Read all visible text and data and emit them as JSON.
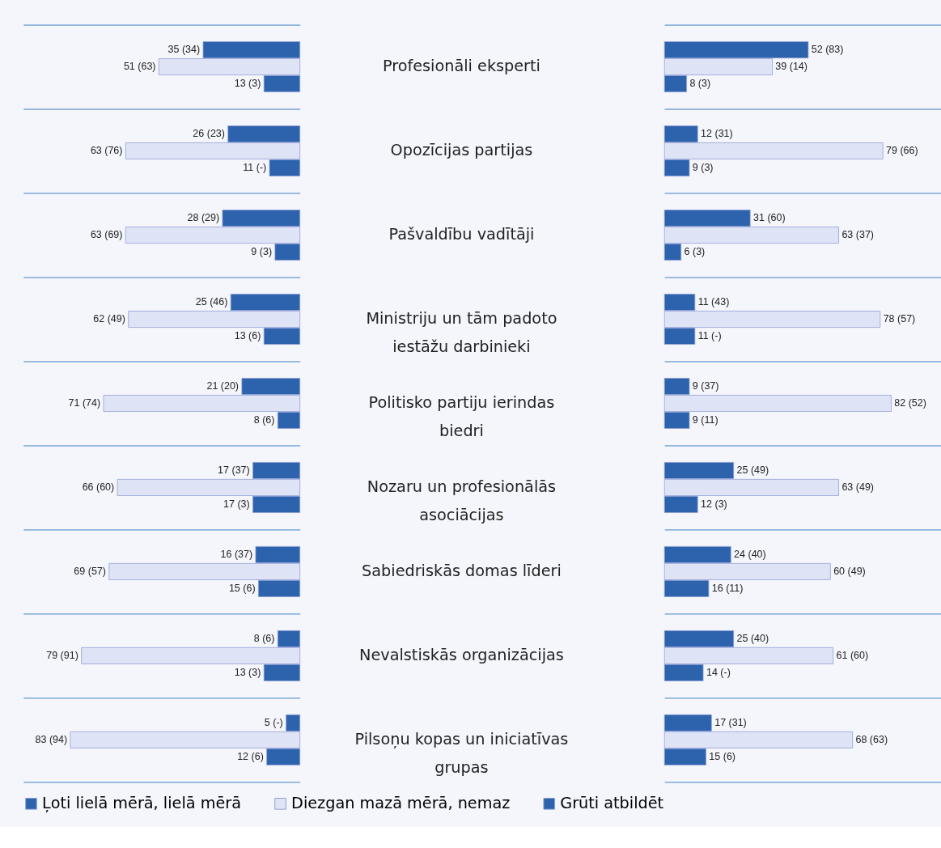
{
  "chart_data": [
    {
      "type": "bar",
      "orientation": "horizontal",
      "xlim": [
        100,
        0
      ],
      "tick_labels": "y",
      "grid": true,
      "legend": "bottom",
      "categories": [
        "Profesionāli eksperti",
        "Opozīcijas partijas",
        "Pašvaldību vadītāji",
        "Ministriju un tām padoto iestāžu darbinieki",
        "Politisko partiju ierindas biedri",
        "Nozaru un profesionālās asociācijas",
        "Sabiedriskās domas līderi",
        "Nevalstiskās organizācijas",
        "Pilsoņu kopas un iniciatīvas grupas"
      ],
      "series": [
        {
          "name": "Ļoti lielā mērā, lielā mērā",
          "color": "#2d62ad",
          "values": [
            35,
            26,
            28,
            25,
            21,
            17,
            16,
            8,
            5
          ],
          "value_labels": [
            "35 (34)",
            "26 (23)",
            "28 (29)",
            "25 (46)",
            "21 (20)",
            "17 (37)",
            "16 (37)",
            "8 (6)",
            "5 (-)"
          ]
        },
        {
          "name": "Diezgan mazā mērā, nemaz",
          "color": "#dfe3f6",
          "values": [
            51,
            63,
            63,
            62,
            71,
            66,
            69,
            79,
            83
          ],
          "value_labels": [
            "51 (63)",
            "63 (76)",
            "63 (69)",
            "62 (49)",
            "71 (74)",
            "66 (60)",
            "69 (57)",
            "79 (91)",
            "83 (94)"
          ]
        },
        {
          "name": "Grūti atbildēt",
          "color": "#2d62ad",
          "values": [
            13,
            11,
            9,
            13,
            8,
            17,
            15,
            13,
            12
          ],
          "value_labels": [
            "13 (3)",
            "11 (-)",
            "9 (3)",
            "13 (6)",
            "8 (6)",
            "17 (3)",
            "15 (6)",
            "13 (3)",
            "12 (6)"
          ]
        }
      ]
    },
    {
      "type": "bar",
      "orientation": "horizontal",
      "xlim": [
        0,
        100
      ],
      "tick_labels": false,
      "grid": true,
      "categories": [
        null,
        null,
        null,
        null,
        null,
        null,
        null,
        null,
        null
      ],
      "series": [
        {
          "color": "#2d62ad",
          "values": [
            52,
            12,
            31,
            11,
            9,
            25,
            24,
            25,
            17
          ],
          "value_labels": [
            "52 (83)",
            "12 (31)",
            "31 (60)",
            "11 (43)",
            "9 (37)",
            "25 (49)",
            "24 (40)",
            "25 (40)",
            "17 (31)"
          ]
        },
        {
          "color": "#dfe3f6",
          "values": [
            39,
            79,
            63,
            78,
            82,
            63,
            60,
            61,
            68
          ],
          "value_labels": [
            "39 (14)",
            "79 (66)",
            "63 (37)",
            "78 (57)",
            "82 (52)",
            "63 (49)",
            "60 (49)",
            "61 (60)",
            "68 (63)"
          ]
        },
        {
          "color": "#2d62ad",
          "values": [
            8,
            9,
            6,
            11,
            9,
            12,
            16,
            14,
            15
          ],
          "value_labels": [
            "8 (3)",
            "9 (3)",
            "6 (3)",
            "11 (-)",
            "9 (11)",
            "12 (3)",
            "16 (11)",
            "14 (-)",
            "15 (6)"
          ]
        }
      ]
    }
  ]
}
